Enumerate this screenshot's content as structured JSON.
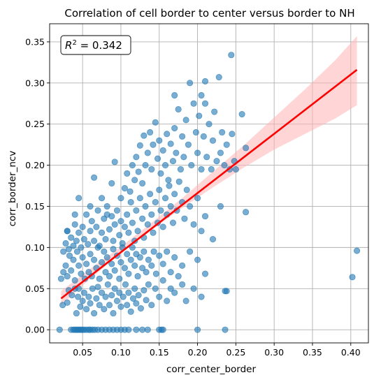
{
  "chart_data": {
    "type": "scatter",
    "title": "Correlation of cell border to center versus border to NH",
    "xlabel": "corr_center_border",
    "ylabel": "corr_border_ncv",
    "xlim": [
      0.007,
      0.423
    ],
    "ylim": [
      -0.016,
      0.372
    ],
    "grid": true,
    "x_ticks": [
      0.05,
      0.1,
      0.15,
      0.2,
      0.25,
      0.3,
      0.35,
      0.4
    ],
    "x_tick_labels": [
      "0.05",
      "0.10",
      "0.15",
      "0.20",
      "0.25",
      "0.30",
      "0.35",
      "0.40"
    ],
    "y_ticks": [
      0.0,
      0.05,
      0.1,
      0.15,
      0.2,
      0.25,
      0.3,
      0.35
    ],
    "y_tick_labels": [
      "0.00",
      "0.05",
      "0.10",
      "0.15",
      "0.20",
      "0.25",
      "0.30",
      "0.35"
    ],
    "annotation": {
      "prefix": "R",
      "superscript": "2",
      "suffix": " = 0.342",
      "position": "top-left"
    },
    "colors": {
      "points": "#1f77b4",
      "regression_line": "#ff0000",
      "confidence_band": "#ffb3b3"
    },
    "regression": {
      "x_start": 0.022,
      "y_start": 0.038,
      "x_end": 0.408,
      "y_end": 0.316,
      "band": [
        {
          "x": 0.022,
          "lo": 0.03,
          "hi": 0.047
        },
        {
          "x": 0.06,
          "lo": 0.062,
          "hi": 0.074
        },
        {
          "x": 0.1,
          "lo": 0.093,
          "hi": 0.101
        },
        {
          "x": 0.14,
          "lo": 0.121,
          "hi": 0.13
        },
        {
          "x": 0.18,
          "lo": 0.148,
          "hi": 0.16
        },
        {
          "x": 0.22,
          "lo": 0.173,
          "hi": 0.192
        },
        {
          "x": 0.26,
          "lo": 0.197,
          "hi": 0.224
        },
        {
          "x": 0.3,
          "lo": 0.219,
          "hi": 0.258
        },
        {
          "x": 0.34,
          "lo": 0.238,
          "hi": 0.292
        },
        {
          "x": 0.38,
          "lo": 0.257,
          "hi": 0.328
        },
        {
          "x": 0.408,
          "lo": 0.273,
          "hi": 0.357
        }
      ]
    },
    "points": [
      [
        0.02,
        0.0
      ],
      [
        0.035,
        0.0
      ],
      [
        0.038,
        0.0
      ],
      [
        0.04,
        0.0
      ],
      [
        0.042,
        0.0
      ],
      [
        0.044,
        0.0
      ],
      [
        0.046,
        0.0
      ],
      [
        0.048,
        0.0
      ],
      [
        0.05,
        0.0
      ],
      [
        0.052,
        0.0
      ],
      [
        0.055,
        0.0
      ],
      [
        0.058,
        0.0
      ],
      [
        0.06,
        0.0
      ],
      [
        0.063,
        0.0
      ],
      [
        0.066,
        0.0
      ],
      [
        0.07,
        0.0
      ],
      [
        0.075,
        0.0
      ],
      [
        0.08,
        0.0
      ],
      [
        0.085,
        0.0
      ],
      [
        0.09,
        0.0
      ],
      [
        0.095,
        0.0
      ],
      [
        0.1,
        0.0
      ],
      [
        0.105,
        0.0
      ],
      [
        0.11,
        0.0
      ],
      [
        0.12,
        0.0
      ],
      [
        0.128,
        0.0
      ],
      [
        0.135,
        0.0
      ],
      [
        0.15,
        0.0
      ],
      [
        0.153,
        0.0
      ],
      [
        0.155,
        0.0
      ],
      [
        0.2,
        0.0
      ],
      [
        0.236,
        0.0
      ],
      [
        0.024,
        0.03
      ],
      [
        0.03,
        0.033
      ],
      [
        0.032,
        0.048
      ],
      [
        0.036,
        0.042
      ],
      [
        0.04,
        0.05
      ],
      [
        0.042,
        0.02
      ],
      [
        0.044,
        0.04
      ],
      [
        0.045,
        0.05
      ],
      [
        0.047,
        0.028
      ],
      [
        0.05,
        0.035
      ],
      [
        0.052,
        0.045
      ],
      [
        0.055,
        0.025
      ],
      [
        0.058,
        0.04
      ],
      [
        0.06,
        0.032
      ],
      [
        0.063,
        0.05
      ],
      [
        0.065,
        0.02
      ],
      [
        0.068,
        0.038
      ],
      [
        0.07,
        0.052
      ],
      [
        0.072,
        0.03
      ],
      [
        0.075,
        0.045
      ],
      [
        0.078,
        0.025
      ],
      [
        0.08,
        0.04
      ],
      [
        0.083,
        0.055
      ],
      [
        0.085,
        0.03
      ],
      [
        0.088,
        0.042
      ],
      [
        0.09,
        0.02
      ],
      [
        0.092,
        0.05
      ],
      [
        0.095,
        0.035
      ],
      [
        0.098,
        0.045
      ],
      [
        0.1,
        0.028
      ],
      [
        0.103,
        0.04
      ],
      [
        0.106,
        0.055
      ],
      [
        0.108,
        0.03
      ],
      [
        0.11,
        0.045
      ],
      [
        0.113,
        0.022
      ],
      [
        0.116,
        0.038
      ],
      [
        0.118,
        0.05
      ],
      [
        0.12,
        0.032
      ],
      [
        0.123,
        0.042
      ],
      [
        0.126,
        0.026
      ],
      [
        0.13,
        0.048
      ],
      [
        0.133,
        0.036
      ],
      [
        0.136,
        0.055
      ],
      [
        0.14,
        0.03
      ],
      [
        0.145,
        0.05
      ],
      [
        0.15,
        0.04
      ],
      [
        0.155,
        0.06
      ],
      [
        0.16,
        0.035
      ],
      [
        0.165,
        0.05
      ],
      [
        0.17,
        0.045
      ],
      [
        0.175,
        0.065
      ],
      [
        0.18,
        0.055
      ],
      [
        0.185,
        0.035
      ],
      [
        0.195,
        0.05
      ],
      [
        0.205,
        0.04
      ],
      [
        0.236,
        0.047
      ],
      [
        0.238,
        0.047
      ],
      [
        0.402,
        0.064
      ],
      [
        0.408,
        0.096
      ],
      [
        0.022,
        0.062
      ],
      [
        0.025,
        0.07
      ],
      [
        0.028,
        0.078
      ],
      [
        0.03,
        0.065
      ],
      [
        0.033,
        0.09
      ],
      [
        0.035,
        0.072
      ],
      [
        0.038,
        0.085
      ],
      [
        0.04,
        0.06
      ],
      [
        0.043,
        0.095
      ],
      [
        0.045,
        0.078
      ],
      [
        0.048,
        0.068
      ],
      [
        0.05,
        0.088
      ],
      [
        0.053,
        0.062
      ],
      [
        0.055,
        0.08
      ],
      [
        0.058,
        0.07
      ],
      [
        0.06,
        0.092
      ],
      [
        0.062,
        0.065
      ],
      [
        0.065,
        0.085
      ],
      [
        0.068,
        0.075
      ],
      [
        0.07,
        0.1
      ],
      [
        0.072,
        0.062
      ],
      [
        0.075,
        0.082
      ],
      [
        0.078,
        0.095
      ],
      [
        0.08,
        0.07
      ],
      [
        0.082,
        0.088
      ],
      [
        0.085,
        0.065
      ],
      [
        0.088,
        0.08
      ],
      [
        0.09,
        0.098
      ],
      [
        0.092,
        0.072
      ],
      [
        0.095,
        0.09
      ],
      [
        0.098,
        0.062
      ],
      [
        0.1,
        0.082
      ],
      [
        0.102,
        0.1
      ],
      [
        0.105,
        0.075
      ],
      [
        0.108,
        0.092
      ],
      [
        0.11,
        0.068
      ],
      [
        0.113,
        0.085
      ],
      [
        0.115,
        0.1
      ],
      [
        0.118,
        0.078
      ],
      [
        0.12,
        0.092
      ],
      [
        0.122,
        0.065
      ],
      [
        0.125,
        0.088
      ],
      [
        0.128,
        0.075
      ],
      [
        0.13,
        0.095
      ],
      [
        0.133,
        0.07
      ],
      [
        0.136,
        0.085
      ],
      [
        0.14,
        0.078
      ],
      [
        0.143,
        0.095
      ],
      [
        0.146,
        0.068
      ],
      [
        0.15,
        0.09
      ],
      [
        0.155,
        0.08
      ],
      [
        0.16,
        0.095
      ],
      [
        0.165,
        0.07
      ],
      [
        0.17,
        0.088
      ],
      [
        0.18,
        0.078
      ],
      [
        0.19,
        0.095
      ],
      [
        0.2,
        0.085
      ],
      [
        0.21,
        0.068
      ],
      [
        0.025,
        0.095
      ],
      [
        0.028,
        0.105
      ],
      [
        0.03,
        0.12
      ],
      [
        0.032,
        0.098
      ],
      [
        0.035,
        0.112
      ],
      [
        0.038,
        0.102
      ],
      [
        0.04,
        0.128
      ],
      [
        0.042,
        0.108
      ],
      [
        0.045,
        0.118
      ],
      [
        0.048,
        0.1
      ],
      [
        0.05,
        0.125
      ],
      [
        0.052,
        0.11
      ],
      [
        0.055,
        0.14
      ],
      [
        0.057,
        0.104
      ],
      [
        0.06,
        0.12
      ],
      [
        0.062,
        0.132
      ],
      [
        0.065,
        0.108
      ],
      [
        0.068,
        0.125
      ],
      [
        0.07,
        0.145
      ],
      [
        0.072,
        0.102
      ],
      [
        0.075,
        0.118
      ],
      [
        0.078,
        0.135
      ],
      [
        0.08,
        0.11
      ],
      [
        0.082,
        0.15
      ],
      [
        0.085,
        0.122
      ],
      [
        0.088,
        0.138
      ],
      [
        0.09,
        0.108
      ],
      [
        0.092,
        0.128
      ],
      [
        0.095,
        0.145
      ],
      [
        0.098,
        0.115
      ],
      [
        0.1,
        0.132
      ],
      [
        0.102,
        0.105
      ],
      [
        0.105,
        0.125
      ],
      [
        0.108,
        0.14
      ],
      [
        0.11,
        0.118
      ],
      [
        0.113,
        0.155
      ],
      [
        0.115,
        0.13
      ],
      [
        0.118,
        0.108
      ],
      [
        0.12,
        0.145
      ],
      [
        0.122,
        0.12
      ],
      [
        0.125,
        0.16
      ],
      [
        0.128,
        0.135
      ],
      [
        0.13,
        0.112
      ],
      [
        0.132,
        0.15
      ],
      [
        0.135,
        0.128
      ],
      [
        0.138,
        0.165
      ],
      [
        0.14,
        0.14
      ],
      [
        0.142,
        0.118
      ],
      [
        0.145,
        0.155
      ],
      [
        0.148,
        0.13
      ],
      [
        0.15,
        0.17
      ],
      [
        0.152,
        0.145
      ],
      [
        0.155,
        0.125
      ],
      [
        0.158,
        0.16
      ],
      [
        0.16,
        0.14
      ],
      [
        0.163,
        0.175
      ],
      [
        0.165,
        0.15
      ],
      [
        0.168,
        0.13
      ],
      [
        0.17,
        0.165
      ],
      [
        0.173,
        0.145
      ],
      [
        0.176,
        0.18
      ],
      [
        0.18,
        0.155
      ],
      [
        0.183,
        0.135
      ],
      [
        0.186,
        0.17
      ],
      [
        0.19,
        0.15
      ],
      [
        0.195,
        0.128
      ],
      [
        0.2,
        0.16
      ],
      [
        0.205,
        0.12
      ],
      [
        0.21,
        0.138
      ],
      [
        0.22,
        0.11
      ],
      [
        0.23,
        0.15
      ],
      [
        0.263,
        0.143
      ],
      [
        0.03,
        0.12
      ],
      [
        0.04,
        0.14
      ],
      [
        0.045,
        0.16
      ],
      [
        0.06,
        0.15
      ],
      [
        0.065,
        0.185
      ],
      [
        0.075,
        0.16
      ],
      [
        0.082,
        0.14
      ],
      [
        0.088,
        0.178
      ],
      [
        0.092,
        0.204
      ],
      [
        0.1,
        0.16
      ],
      [
        0.105,
        0.172
      ],
      [
        0.108,
        0.19
      ],
      [
        0.112,
        0.168
      ],
      [
        0.115,
        0.2
      ],
      [
        0.118,
        0.182
      ],
      [
        0.12,
        0.21
      ],
      [
        0.123,
        0.192
      ],
      [
        0.125,
        0.224
      ],
      [
        0.128,
        0.178
      ],
      [
        0.13,
        0.236
      ],
      [
        0.132,
        0.2
      ],
      [
        0.135,
        0.215
      ],
      [
        0.138,
        0.24
      ],
      [
        0.14,
        0.195
      ],
      [
        0.142,
        0.225
      ],
      [
        0.145,
        0.252
      ],
      [
        0.148,
        0.208
      ],
      [
        0.15,
        0.23
      ],
      [
        0.152,
        0.19
      ],
      [
        0.155,
        0.218
      ],
      [
        0.158,
        0.2
      ],
      [
        0.16,
        0.238
      ],
      [
        0.162,
        0.182
      ],
      [
        0.165,
        0.226
      ],
      [
        0.168,
        0.205
      ],
      [
        0.17,
        0.245
      ],
      [
        0.172,
        0.215
      ],
      [
        0.175,
        0.268
      ],
      [
        0.178,
        0.195
      ],
      [
        0.18,
        0.235
      ],
      [
        0.182,
        0.21
      ],
      [
        0.185,
        0.255
      ],
      [
        0.188,
        0.225
      ],
      [
        0.19,
        0.3
      ],
      [
        0.192,
        0.2
      ],
      [
        0.195,
        0.275
      ],
      [
        0.198,
        0.24
      ],
      [
        0.2,
        0.215
      ],
      [
        0.202,
        0.26
      ],
      [
        0.205,
        0.195
      ],
      [
        0.208,
        0.235
      ],
      [
        0.21,
        0.275
      ],
      [
        0.212,
        0.21
      ],
      [
        0.215,
        0.25
      ],
      [
        0.218,
        0.195
      ],
      [
        0.22,
        0.23
      ],
      [
        0.222,
        0.265
      ],
      [
        0.225,
        0.205
      ],
      [
        0.228,
        0.307
      ],
      [
        0.23,
        0.215
      ],
      [
        0.232,
        0.24
      ],
      [
        0.235,
        0.2
      ],
      [
        0.238,
        0.225
      ],
      [
        0.242,
        0.195
      ],
      [
        0.244,
        0.334
      ],
      [
        0.245,
        0.238
      ],
      [
        0.248,
        0.205
      ],
      [
        0.25,
        0.195
      ],
      [
        0.258,
        0.262
      ],
      [
        0.263,
        0.221
      ],
      [
        0.21,
        0.302
      ],
      [
        0.205,
        0.285
      ],
      [
        0.17,
        0.285
      ]
    ]
  }
}
